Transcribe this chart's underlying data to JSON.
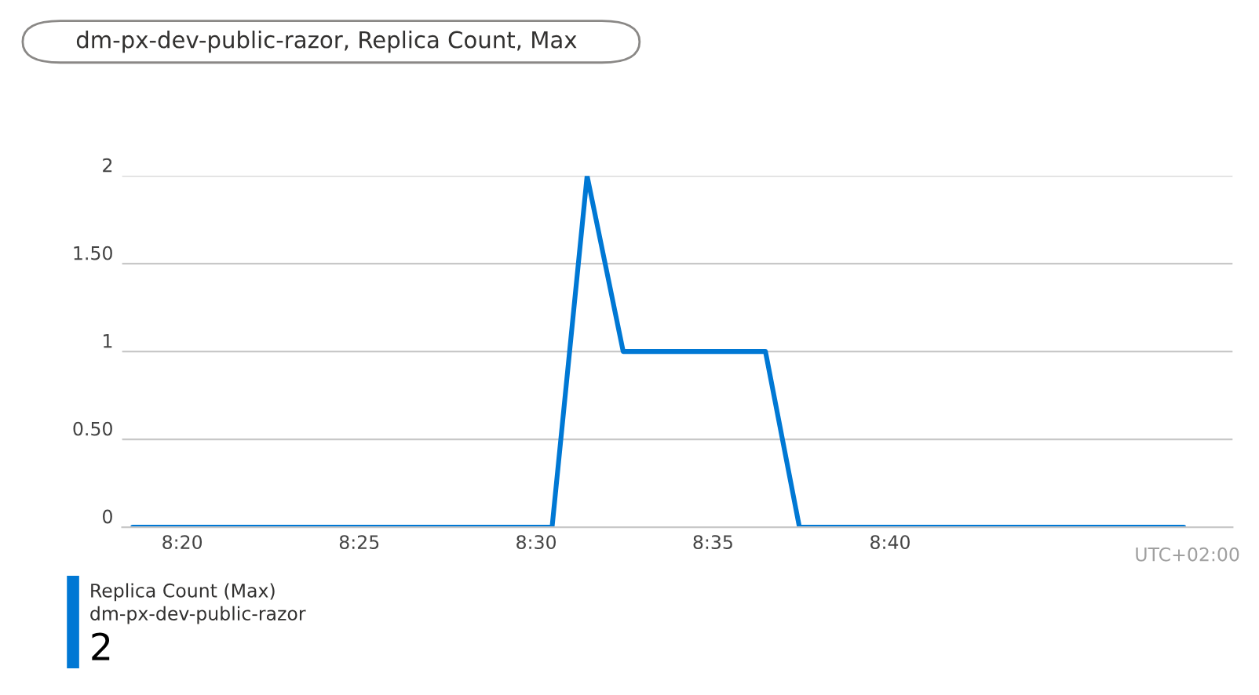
{
  "chart_data": {
    "type": "line",
    "title": "dm-px-dev-public-razor, Replica Count, Max",
    "x": [
      8.31,
      8.5075,
      8.524,
      8.541,
      8.608,
      8.624,
      8.805
    ],
    "series": [
      {
        "name": "Replica Count (Max)",
        "color": "#0078d4",
        "values": [
          0,
          0,
          2,
          1,
          1,
          0,
          0
        ]
      }
    ],
    "xlim": [
      8.305,
      8.828
    ],
    "xticks": [
      {
        "value": 8.3333,
        "label": "8:20"
      },
      {
        "value": 8.4167,
        "label": "8:25"
      },
      {
        "value": 8.5,
        "label": "8:30"
      },
      {
        "value": 8.5833,
        "label": "8:35"
      },
      {
        "value": 8.6667,
        "label": "8:40"
      }
    ],
    "ylim": [
      0,
      2
    ],
    "yticks": [
      0,
      {
        "value": 0.5,
        "label": "0.50"
      },
      1,
      {
        "value": 1.5,
        "label": "1.50"
      },
      2
    ],
    "grid": "y",
    "legend": "bottom left",
    "line_style": "solid",
    "annotations": [
      "dm-px-dev-public-razor",
      "2",
      "UTC+02:00"
    ]
  }
}
